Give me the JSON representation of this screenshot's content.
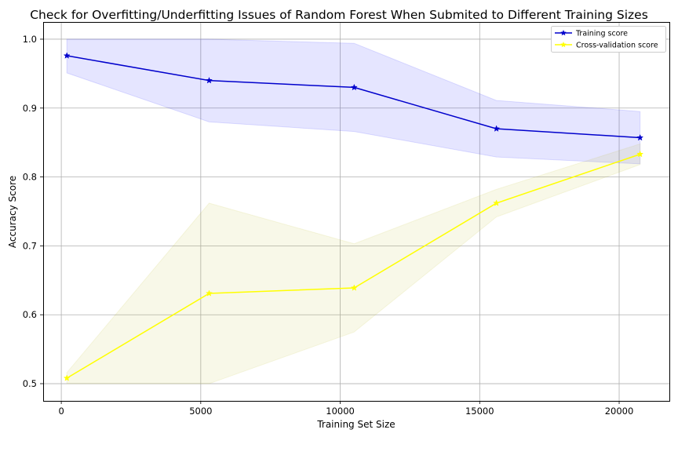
{
  "chart_data": {
    "type": "line",
    "title": "Check for Overfitting/Underfitting Issues of Random Forest When Submited to Different Training Sizes",
    "xlabel": "Training Set Size",
    "ylabel": "Accuracy Score",
    "xlim": [
      -650,
      21800
    ],
    "ylim": [
      0.475,
      1.025
    ],
    "xticks": [
      0,
      5000,
      10000,
      15000,
      20000
    ],
    "yticks": [
      0.5,
      0.6,
      0.7,
      0.8,
      0.9,
      1.0
    ],
    "xtick_labels": [
      "0",
      "5000",
      "10000",
      "15000",
      "20000"
    ],
    "ytick_labels": [
      "0.5",
      "0.6",
      "0.7",
      "0.8",
      "0.9",
      "1.0"
    ],
    "grid": true,
    "legend_position": "top-right",
    "x": [
      200,
      5300,
      10500,
      15600,
      20750
    ],
    "series": [
      {
        "name": "Training score",
        "color": "#0000cc",
        "band_color": "#0000ff",
        "values": [
          0.976,
          0.94,
          0.93,
          0.87,
          0.857
        ],
        "lower": [
          0.951,
          0.88,
          0.866,
          0.829,
          0.819
        ],
        "upper": [
          1.0,
          1.0,
          0.994,
          0.911,
          0.895
        ]
      },
      {
        "name": "Cross-validation score",
        "color": "#ffff00",
        "band_color": "#bdbd20",
        "values": [
          0.508,
          0.631,
          0.639,
          0.762,
          0.833
        ],
        "lower": [
          0.5,
          0.5,
          0.575,
          0.742,
          0.818
        ],
        "upper": [
          0.516,
          0.762,
          0.703,
          0.782,
          0.848
        ]
      }
    ]
  }
}
